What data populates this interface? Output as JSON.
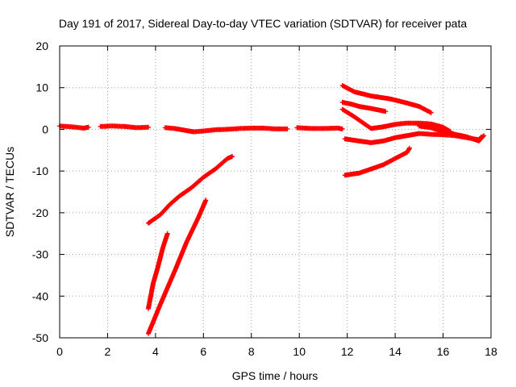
{
  "chart_data": {
    "type": "scatter",
    "title": "Day 191 of 2017, Sidereal Day-to-day VTEC variation (SDTVAR) for receiver pata",
    "xlabel": "GPS time / hours",
    "ylabel": "SDTVAR / TECUs",
    "xlim": [
      0,
      18
    ],
    "ylim": [
      -50,
      20
    ],
    "xticks": [
      "0",
      "2",
      "4",
      "6",
      "8",
      "10",
      "12",
      "14",
      "16",
      "18"
    ],
    "yticks": [
      "-50",
      "-40",
      "-30",
      "-20",
      "-10",
      "0",
      "10",
      "20"
    ],
    "grid": true,
    "marker_color": "#ff0000",
    "series": [
      {
        "points": [
          [
            0.0,
            0.8
          ],
          [
            0.5,
            0.6
          ],
          [
            1.0,
            0.3
          ],
          [
            1.2,
            0.5
          ]
        ]
      },
      {
        "points": [
          [
            1.7,
            0.7
          ],
          [
            2.2,
            0.8
          ],
          [
            2.7,
            0.7
          ],
          [
            3.2,
            0.4
          ],
          [
            3.7,
            0.5
          ]
        ]
      },
      {
        "points": [
          [
            4.4,
            0.4
          ],
          [
            4.8,
            0.2
          ],
          [
            5.3,
            -0.3
          ],
          [
            5.6,
            -0.6
          ],
          [
            6.0,
            -0.4
          ],
          [
            6.5,
            -0.1
          ],
          [
            7.0,
            0.0
          ],
          [
            7.5,
            0.2
          ],
          [
            8.0,
            0.3
          ],
          [
            8.5,
            0.3
          ],
          [
            9.0,
            0.1
          ],
          [
            9.5,
            0.1
          ]
        ]
      },
      {
        "points": [
          [
            9.9,
            0.4
          ],
          [
            10.5,
            0.2
          ],
          [
            11.0,
            0.2
          ],
          [
            11.6,
            0.3
          ],
          [
            11.8,
            0.1
          ]
        ]
      },
      {
        "points": [
          [
            3.7,
            -22.5
          ],
          [
            4.2,
            -20.5
          ],
          [
            4.6,
            -18.0
          ],
          [
            5.0,
            -16.0
          ],
          [
            5.5,
            -14.0
          ],
          [
            6.0,
            -11.5
          ],
          [
            6.5,
            -9.5
          ],
          [
            7.0,
            -7.0
          ],
          [
            7.2,
            -6.5
          ]
        ]
      },
      {
        "points": [
          [
            3.7,
            -43.0
          ],
          [
            3.9,
            -37.0
          ],
          [
            4.1,
            -33.0
          ],
          [
            4.3,
            -28.5
          ],
          [
            4.5,
            -25.0
          ]
        ]
      },
      {
        "points": [
          [
            3.7,
            -49.0
          ],
          [
            4.2,
            -42.0
          ],
          [
            4.8,
            -34.0
          ],
          [
            5.3,
            -27.0
          ],
          [
            5.8,
            -21.0
          ],
          [
            6.1,
            -17.0
          ]
        ]
      },
      {
        "points": [
          [
            11.8,
            10.5
          ],
          [
            12.3,
            9.0
          ],
          [
            13.0,
            8.0
          ],
          [
            13.8,
            7.3
          ],
          [
            14.5,
            6.3
          ],
          [
            15.0,
            5.5
          ],
          [
            15.5,
            4.0
          ]
        ]
      },
      {
        "points": [
          [
            11.8,
            6.5
          ],
          [
            12.2,
            6.0
          ],
          [
            12.5,
            5.5
          ],
          [
            13.0,
            5.0
          ],
          [
            13.6,
            4.3
          ]
        ]
      },
      {
        "points": [
          [
            11.8,
            4.8
          ],
          [
            12.3,
            3.0
          ],
          [
            12.8,
            1.0
          ],
          [
            13.0,
            0.2
          ],
          [
            13.5,
            0.6
          ],
          [
            14.0,
            1.2
          ],
          [
            14.5,
            1.5
          ],
          [
            15.0,
            1.5
          ],
          [
            15.5,
            1.3
          ],
          [
            16.0,
            0.5
          ],
          [
            16.3,
            -0.5
          ]
        ]
      },
      {
        "points": [
          [
            11.9,
            -2.3
          ],
          [
            12.5,
            -2.8
          ],
          [
            13.0,
            -3.2
          ],
          [
            13.5,
            -2.8
          ],
          [
            14.0,
            -2.0
          ],
          [
            14.5,
            -1.5
          ],
          [
            15.0,
            -1.0
          ],
          [
            15.5,
            -1.2
          ],
          [
            16.0,
            -1.3
          ],
          [
            16.5,
            -1.5
          ],
          [
            17.0,
            -2.0
          ],
          [
            17.5,
            -2.5
          ],
          [
            17.6,
            -1.8
          ]
        ]
      },
      {
        "points": [
          [
            11.9,
            -11.0
          ],
          [
            12.5,
            -10.5
          ],
          [
            13.0,
            -9.5
          ],
          [
            13.5,
            -8.5
          ],
          [
            14.0,
            -7.0
          ],
          [
            14.5,
            -5.5
          ],
          [
            14.6,
            -4.5
          ]
        ]
      },
      {
        "points": [
          [
            15.0,
            0.8
          ],
          [
            15.5,
            0.4
          ],
          [
            16.0,
            -0.5
          ],
          [
            16.5,
            -1.2
          ],
          [
            17.0,
            -1.8
          ],
          [
            17.5,
            -2.8
          ],
          [
            17.7,
            -1.5
          ]
        ]
      }
    ]
  }
}
